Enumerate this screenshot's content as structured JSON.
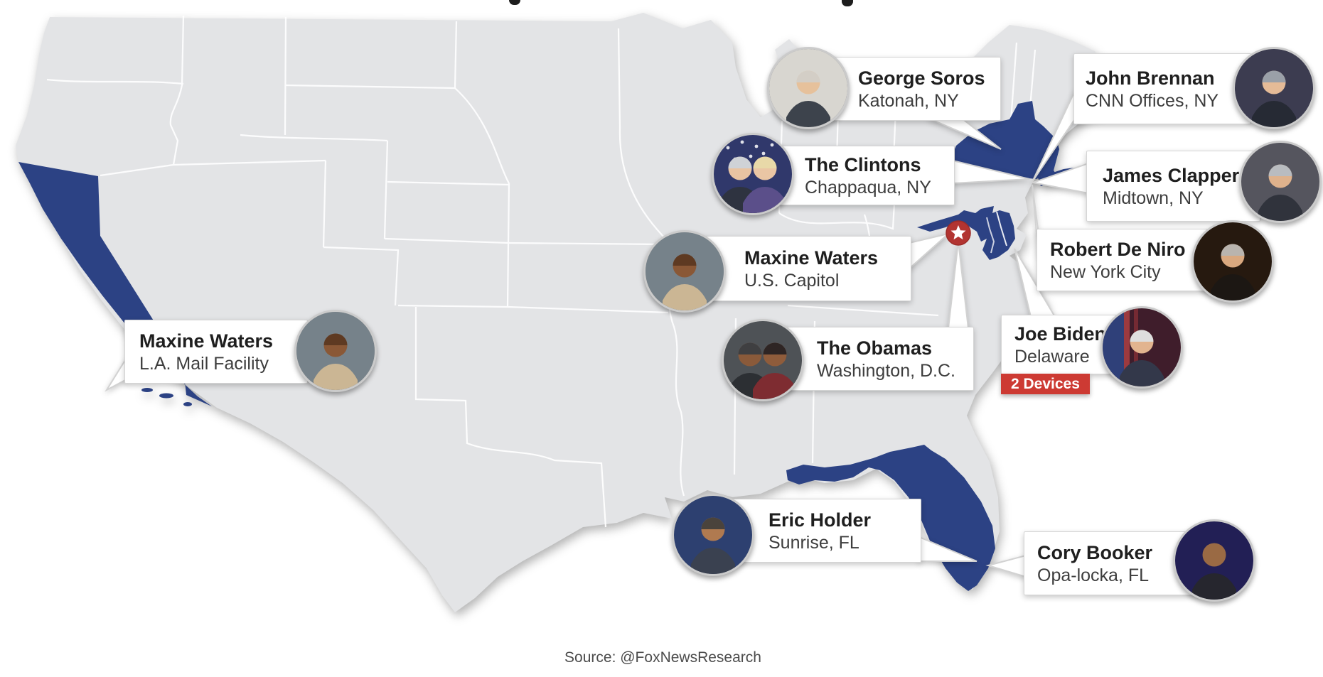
{
  "colors": {
    "page_bg": "#ffffff",
    "state_fill": "#e3e4e6",
    "state_border": "#ffffff",
    "highlight_blue": "#2c4284",
    "marker_red": "#b23431",
    "marker_ring": "#9c2b27",
    "badge_red": "#cd3a33",
    "card_bg": "#ffffff",
    "card_border": "#d5d5d5",
    "name_color": "#1f1f1f",
    "location_color": "#3d3d3d",
    "source_color": "#4c4c4c",
    "tail_fill": "#ffffff",
    "tail_stroke": "#d2d2d2"
  },
  "map": {
    "highlighted_states": [
      "California",
      "New York",
      "Maryland",
      "Delaware",
      "Florida"
    ],
    "marker": {
      "shape": "star",
      "color": "#b23431"
    }
  },
  "source": {
    "label": "Source: @FoxNewsResearch"
  },
  "callouts": {
    "soros": {
      "name": "George Soros",
      "location": "Katonah, NY",
      "avatar": {
        "type": "single",
        "bg": "#d8d6d0",
        "persons": [
          {
            "skin": "#e6c19b",
            "hair": "#d3cec6",
            "suit": "#3d434c"
          }
        ]
      }
    },
    "brennan": {
      "name": "John Brennan",
      "location": "CNN Offices, NY",
      "avatar": {
        "type": "single",
        "bg": "#3c3c50",
        "persons": [
          {
            "skin": "#e5bb97",
            "hair": "#9aa0a8",
            "suit": "#262a34"
          }
        ]
      }
    },
    "clintons": {
      "name": "The Clintons",
      "location": "Chappaqua, NY",
      "avatar": {
        "type": "couple",
        "bg": "#30386b",
        "stars": true,
        "persons": [
          {
            "skin": "#e9c4a2",
            "hair": "#cfd2d6",
            "suit": "#2e3340"
          },
          {
            "skin": "#eac6a4",
            "hair": "#e8d9a8",
            "suit": "#5b4f8a"
          }
        ]
      }
    },
    "clapper": {
      "name": "James Clapper",
      "location": "Midtown, NY",
      "avatar": {
        "type": "single",
        "bg": "#55555e",
        "persons": [
          {
            "skin": "#dfb28c",
            "hair": "#b9bcc0",
            "suit": "#30333c"
          }
        ]
      }
    },
    "deniro": {
      "name": "Robert De Niro",
      "location": "New York City",
      "avatar": {
        "type": "single",
        "bg": "#26190f",
        "persons": [
          {
            "skin": "#d9a87f",
            "hair": "#b9b4ae",
            "suit": "#1c1713"
          }
        ]
      }
    },
    "waters_capitol": {
      "name": "Maxine Waters",
      "location": "U.S. Capitol",
      "avatar": {
        "type": "single",
        "bg": "#76828a",
        "persons": [
          {
            "skin": "#8a5836",
            "hair": "#5e3a22",
            "suit": "#cbb694"
          }
        ]
      }
    },
    "waters_la": {
      "name": "Maxine Waters",
      "location": "L.A. Mail Facility",
      "avatar": {
        "type": "single",
        "bg": "#76828a",
        "persons": [
          {
            "skin": "#8a5836",
            "hair": "#5e3a22",
            "suit": "#cbb694"
          }
        ]
      }
    },
    "obamas": {
      "name": "The Obamas",
      "location": "Washington, D.C.",
      "avatar": {
        "type": "couple",
        "bg": "#4e5256",
        "persons": [
          {
            "skin": "#8a5a3a",
            "hair": "#3f3f41",
            "suit": "#2c2f33"
          },
          {
            "skin": "#8f5c3b",
            "hair": "#2e2524",
            "suit": "#7e2c31"
          }
        ]
      }
    },
    "biden": {
      "name": "Joe Biden",
      "location": "Delaware",
      "badge": "2 Devices",
      "avatar": {
        "type": "single",
        "bg": "#3f1d2b",
        "flag": true,
        "persons": [
          {
            "skin": "#e2b48f",
            "hair": "#dedede",
            "suit": "#33384a"
          }
        ]
      }
    },
    "holder": {
      "name": "Eric Holder",
      "location": "Sunrise, FL",
      "avatar": {
        "type": "single",
        "bg": "#2d4070",
        "persons": [
          {
            "skin": "#b07a50",
            "hair": "#4a433c",
            "suit": "#3a4150"
          }
        ]
      }
    },
    "booker": {
      "name": "Cory Booker",
      "location": "Opa-locka, FL",
      "avatar": {
        "type": "single",
        "bg": "#221f55",
        "persons": [
          {
            "skin": "#9a6a44",
            "hair": null,
            "suit": "#26262e"
          }
        ]
      }
    }
  }
}
